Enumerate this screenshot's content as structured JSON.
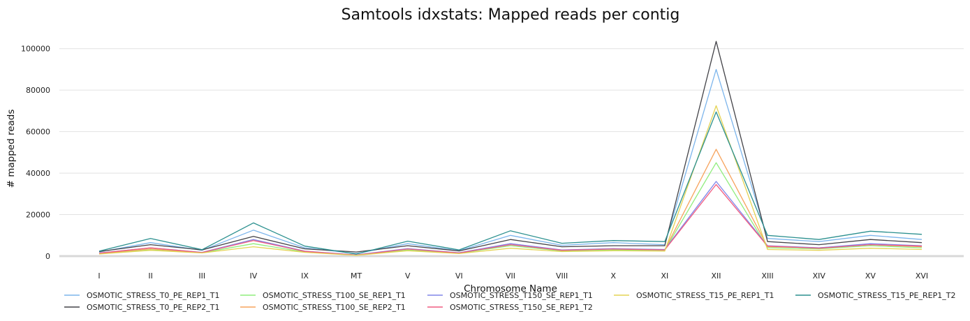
{
  "chart_data": {
    "type": "line",
    "title": "Samtools idxstats: Mapped reads per contig",
    "xlabel": "Chromosome Name",
    "ylabel": "# mapped reads",
    "ylim": [
      0,
      110000
    ],
    "yticks": [
      0,
      20000,
      40000,
      60000,
      80000,
      100000
    ],
    "grid": true,
    "legend_position": "bottom",
    "categories": [
      "I",
      "II",
      "III",
      "IV",
      "IX",
      "MT",
      "V",
      "VI",
      "VII",
      "VIII",
      "X",
      "XI",
      "XII",
      "XIII",
      "XIV",
      "XV",
      "XVI"
    ],
    "series": [
      {
        "name": "OSMOTIC_STRESS_T0_PE_REP1_T1",
        "color": "#7cb5ec",
        "values": [
          2000,
          6500,
          2800,
          12500,
          4000,
          1200,
          6000,
          2600,
          10000,
          5200,
          6500,
          5500,
          90000,
          8500,
          7000,
          10000,
          8000
        ]
      },
      {
        "name": "OSMOTIC_STRESS_T0_PE_REP2_T1",
        "color": "#434348",
        "values": [
          2200,
          5500,
          3000,
          9500,
          3500,
          2000,
          5000,
          2500,
          8000,
          4500,
          5000,
          5000,
          103500,
          7000,
          5500,
          8000,
          6500
        ]
      },
      {
        "name": "OSMOTIC_STRESS_T100_SE_REP1_T1",
        "color": "#90ed7d",
        "values": [
          1200,
          3000,
          1600,
          6000,
          2000,
          500,
          3000,
          1400,
          5000,
          2500,
          3000,
          2800,
          45000,
          4000,
          3500,
          5000,
          4000
        ]
      },
      {
        "name": "OSMOTIC_STRESS_T100_SE_REP2_T1",
        "color": "#f7a35c",
        "values": [
          1300,
          3500,
          1700,
          8000,
          2200,
          500,
          3500,
          1500,
          6000,
          2800,
          3500,
          3000,
          51500,
          4500,
          4000,
          5500,
          4500
        ]
      },
      {
        "name": "OSMOTIC_STRESS_T150_SE_REP1_T1",
        "color": "#8085e9",
        "values": [
          1500,
          4000,
          1800,
          8000,
          2400,
          600,
          3600,
          1600,
          6000,
          3000,
          3600,
          3200,
          36000,
          5000,
          4000,
          6000,
          5000
        ]
      },
      {
        "name": "OSMOTIC_STRESS_T150_SE_REP1_T2",
        "color": "#f15c80",
        "values": [
          1400,
          4000,
          1700,
          7500,
          2300,
          500,
          3400,
          1500,
          5500,
          2800,
          3400,
          3000,
          34500,
          4800,
          3800,
          5500,
          4800
        ]
      },
      {
        "name": "OSMOTIC_STRESS_T15_PE_REP1_T1",
        "color": "#e4d354",
        "values": [
          1000,
          2800,
          1500,
          4500,
          1800,
          400,
          2600,
          1200,
          3800,
          2200,
          2600,
          2400,
          72500,
          3200,
          2800,
          3800,
          3200
        ]
      },
      {
        "name": "OSMOTIC_STRESS_T15_PE_REP1_T2",
        "color": "#2b908f",
        "values": [
          2400,
          8500,
          3100,
          16000,
          4800,
          1000,
          7200,
          3000,
          12200,
          6200,
          7500,
          7000,
          69500,
          10000,
          8000,
          12000,
          10500
        ]
      }
    ]
  }
}
